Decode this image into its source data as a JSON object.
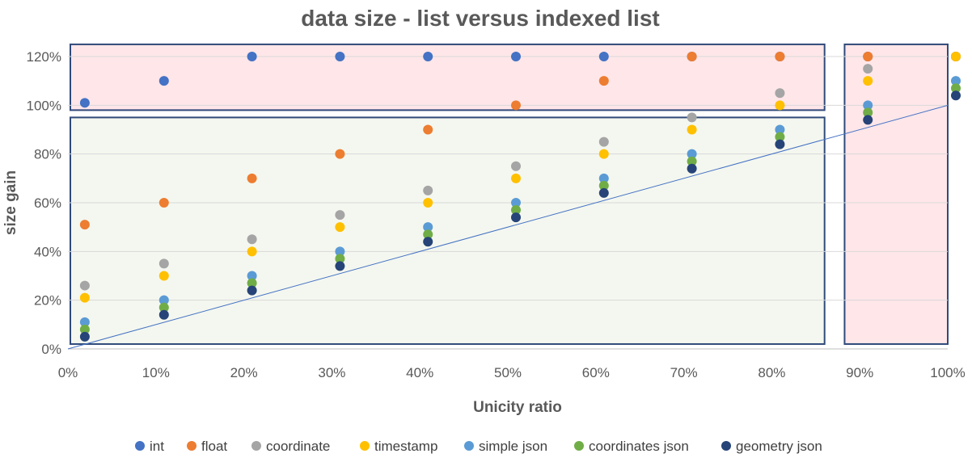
{
  "chart_data": {
    "type": "scatter",
    "title": "data size - list versus indexed list",
    "xlabel": "Unicity ratio",
    "ylabel": "size gain",
    "xlim": [
      0,
      100
    ],
    "ylim": [
      0,
      120
    ],
    "x_ticks": [
      "0%",
      "10%",
      "20%",
      "30%",
      "40%",
      "50%",
      "60%",
      "70%",
      "80%",
      "90%",
      "100%"
    ],
    "y_ticks": [
      "0%",
      "20%",
      "40%",
      "60%",
      "80%",
      "100%",
      "120%"
    ],
    "grid": "horizontal",
    "legend": "bottom",
    "reference_line": {
      "from": [
        0,
        0
      ],
      "to": [
        100,
        100
      ],
      "color": "#4472c4"
    },
    "regions": [
      {
        "zone": "upper",
        "x": [
          0,
          86
        ],
        "y": [
          98,
          125
        ],
        "fill": "#ffe6e9",
        "stroke": "#2f4a7a"
      },
      {
        "zone": "lower",
        "x": [
          0,
          86
        ],
        "y": [
          2,
          95
        ],
        "fill": "#f4f7ef",
        "stroke": "#2f4a7a"
      },
      {
        "zone": "right",
        "x": [
          88,
          100
        ],
        "y": [
          2,
          125
        ],
        "fill": "#ffe6e9",
        "stroke": "#2f4a7a"
      }
    ],
    "series": [
      {
        "name": "int",
        "color": "#4472c4",
        "x": [
          1,
          10,
          20,
          30,
          40,
          50,
          60,
          70,
          80,
          90,
          100
        ],
        "y": [
          101,
          110,
          120,
          120,
          120,
          120,
          120,
          120,
          120,
          120,
          120
        ]
      },
      {
        "name": "float",
        "color": "#ed7d31",
        "x": [
          1,
          10,
          20,
          30,
          40,
          50,
          60,
          70,
          80,
          90,
          100
        ],
        "y": [
          51,
          60,
          70,
          80,
          90,
          100,
          110,
          120,
          120,
          120,
          120
        ]
      },
      {
        "name": "coordinate",
        "color": "#a5a5a5",
        "x": [
          1,
          10,
          20,
          30,
          40,
          50,
          60,
          70,
          80,
          90,
          100
        ],
        "y": [
          26,
          35,
          45,
          55,
          65,
          75,
          85,
          95,
          105,
          115,
          120
        ]
      },
      {
        "name": "timestamp",
        "color": "#ffc000",
        "x": [
          1,
          10,
          20,
          30,
          40,
          50,
          60,
          70,
          80,
          90,
          100
        ],
        "y": [
          21,
          30,
          40,
          50,
          60,
          70,
          80,
          90,
          100,
          110,
          120
        ]
      },
      {
        "name": "simple json",
        "color": "#5b9bd5",
        "x": [
          1,
          10,
          20,
          30,
          40,
          50,
          60,
          70,
          80,
          90,
          100
        ],
        "y": [
          11,
          20,
          30,
          40,
          50,
          60,
          70,
          80,
          90,
          100,
          110
        ]
      },
      {
        "name": "coordinates json",
        "color": "#70ad47",
        "x": [
          1,
          10,
          20,
          30,
          40,
          50,
          60,
          70,
          80,
          90,
          100
        ],
        "y": [
          8,
          17,
          27,
          37,
          47,
          57,
          67,
          77,
          87,
          97,
          107
        ]
      },
      {
        "name": "geometry json",
        "color": "#264478",
        "x": [
          1,
          10,
          20,
          30,
          40,
          50,
          60,
          70,
          80,
          90,
          100
        ],
        "y": [
          5,
          14,
          24,
          34,
          44,
          54,
          64,
          74,
          84,
          94,
          104
        ]
      }
    ]
  }
}
